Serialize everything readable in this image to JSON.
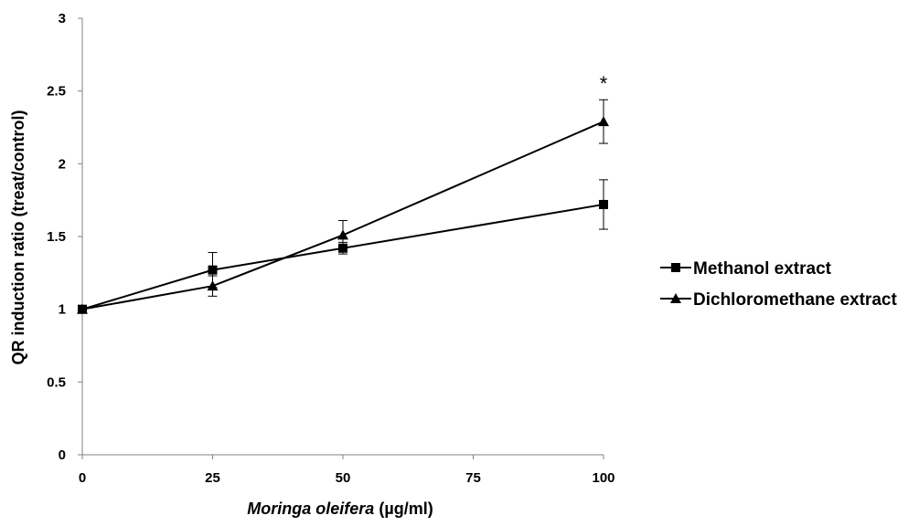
{
  "chart_data": {
    "type": "line",
    "xlabel": {
      "italic": "Moringa oleifera",
      "rest": " (µg/ml)"
    },
    "ylabel": "QR induction ratio (treat/control)",
    "x_ticks": [
      "0",
      "25",
      "50",
      "75",
      "100"
    ],
    "y_ticks": [
      "0",
      "0.5",
      "1",
      "1.5",
      "2",
      "2.5",
      "3"
    ],
    "xlim": [
      0,
      100
    ],
    "ylim": [
      0,
      3
    ],
    "grid": false,
    "legend_position": "right",
    "series": [
      {
        "name": "Methanol extract",
        "marker": "square",
        "x": [
          0,
          25,
          50,
          100
        ],
        "y": [
          1.0,
          1.27,
          1.42,
          1.72
        ],
        "error": [
          0.0,
          0.12,
          0.04,
          0.17
        ]
      },
      {
        "name": "Dichloromethane extract",
        "marker": "triangle",
        "x": [
          0,
          25,
          50,
          100
        ],
        "y": [
          1.0,
          1.16,
          1.51,
          2.29
        ],
        "error": [
          0.0,
          0.07,
          0.1,
          0.15
        ]
      }
    ],
    "annotations": [
      {
        "text": "*",
        "series": 1,
        "index": 3
      }
    ]
  }
}
